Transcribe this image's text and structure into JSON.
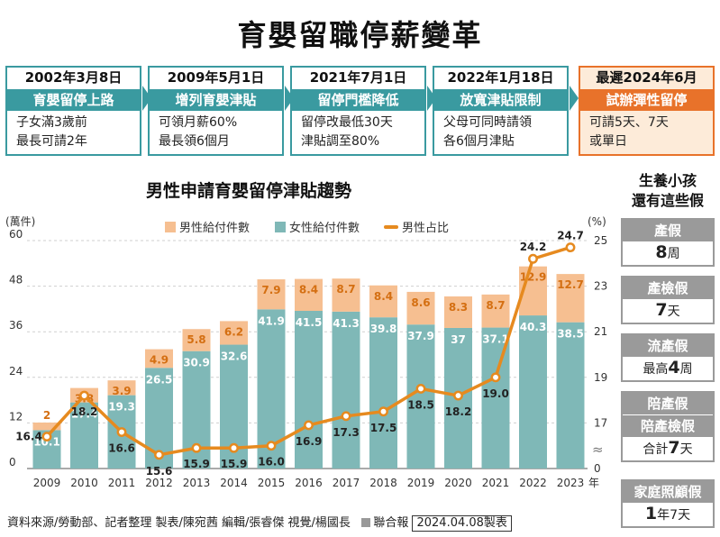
{
  "title": "育嬰留職停薪變革",
  "timeline": [
    {
      "date": "2002年3月8日",
      "head": "育嬰留停上路",
      "lines": [
        "子女滿3歲前",
        "最長可請2年"
      ]
    },
    {
      "date": "2009年5月1日",
      "head": "增列育嬰津貼",
      "lines": [
        "可領月薪60%",
        "最長領6個月"
      ]
    },
    {
      "date": "2021年7月1日",
      "head": "留停門檻降低",
      "lines": [
        "留停改最低30天",
        "津貼調至80%"
      ]
    },
    {
      "date": "2022年1月18日",
      "head": "放寬津貼限制",
      "lines": [
        "父母可同時請領",
        "各6個月津貼"
      ]
    },
    {
      "date": "最遲2024年6月",
      "head": "試辦彈性留停",
      "lines": [
        "可請5天、7天",
        "或單日"
      ]
    }
  ],
  "chart_data": {
    "type": "bar",
    "stacked": true,
    "title": "男性申請育嬰留停津貼趨勢",
    "ylabel_left": "(萬件)",
    "ylabel_right": "(%)",
    "x_suffix": "年",
    "categories": [
      "2009",
      "2010",
      "2011",
      "2012",
      "2013",
      "2014",
      "2015",
      "2016",
      "2017",
      "2018",
      "2019",
      "2020",
      "2021",
      "2022",
      "2023"
    ],
    "series": [
      {
        "name": "女性給付件數",
        "type": "bar",
        "axis": "left",
        "color": "#7fb8b7",
        "values": [
          10.1,
          17.4,
          19.3,
          26.5,
          30.9,
          32.6,
          41.9,
          41.5,
          41.3,
          39.8,
          37.9,
          37.0,
          37.1,
          40.3,
          38.5
        ]
      },
      {
        "name": "男性給付件數",
        "type": "bar",
        "axis": "left",
        "color": "#f6bf91",
        "values": [
          2,
          3.8,
          3.9,
          4.9,
          5.8,
          6.2,
          7.9,
          8.4,
          8.7,
          8.4,
          8.6,
          8.3,
          8.7,
          12.9,
          12.7
        ]
      },
      {
        "name": "男性占比",
        "type": "line",
        "axis": "right",
        "color": "#e68a1f",
        "values": [
          16.4,
          18.2,
          16.6,
          15.6,
          15.9,
          15.9,
          16.0,
          16.9,
          17.3,
          17.5,
          18.5,
          18.2,
          19.0,
          24.2,
          24.7
        ]
      }
    ],
    "y_left_ticks": [
      0,
      12,
      24,
      36,
      48,
      60
    ],
    "y_right_ticks": [
      "0",
      "17",
      "19",
      "21",
      "23",
      "25"
    ],
    "legend_placement": "top",
    "grid": true,
    "break_mark": "≈"
  },
  "source_text": "資料來源/勞動部、記者整理  製表/陳宛茜  編輯/張睿傑  視覺/楊國長",
  "publisher": "聯合報",
  "publish_date": "2024.04.08製表",
  "side": {
    "title_lines": [
      "生養小孩",
      "還有這些假"
    ],
    "items": [
      {
        "heads": [
          "產假"
        ],
        "value_bold": "8",
        "value_unit": "周",
        "value_prefix": ""
      },
      {
        "heads": [
          "產檢假"
        ],
        "value_bold": "7",
        "value_unit": "天",
        "value_prefix": ""
      },
      {
        "heads": [
          "流產假"
        ],
        "value_bold": "4",
        "value_unit": "周",
        "value_prefix": "最高"
      },
      {
        "heads": [
          "陪產假",
          "陪產檢假"
        ],
        "value_bold": "7",
        "value_unit": "天",
        "value_prefix": "合計"
      },
      {
        "heads": [
          "家庭照顧假"
        ],
        "value_bold": "1",
        "value_unit": "年7天",
        "value_prefix": ""
      }
    ]
  }
}
